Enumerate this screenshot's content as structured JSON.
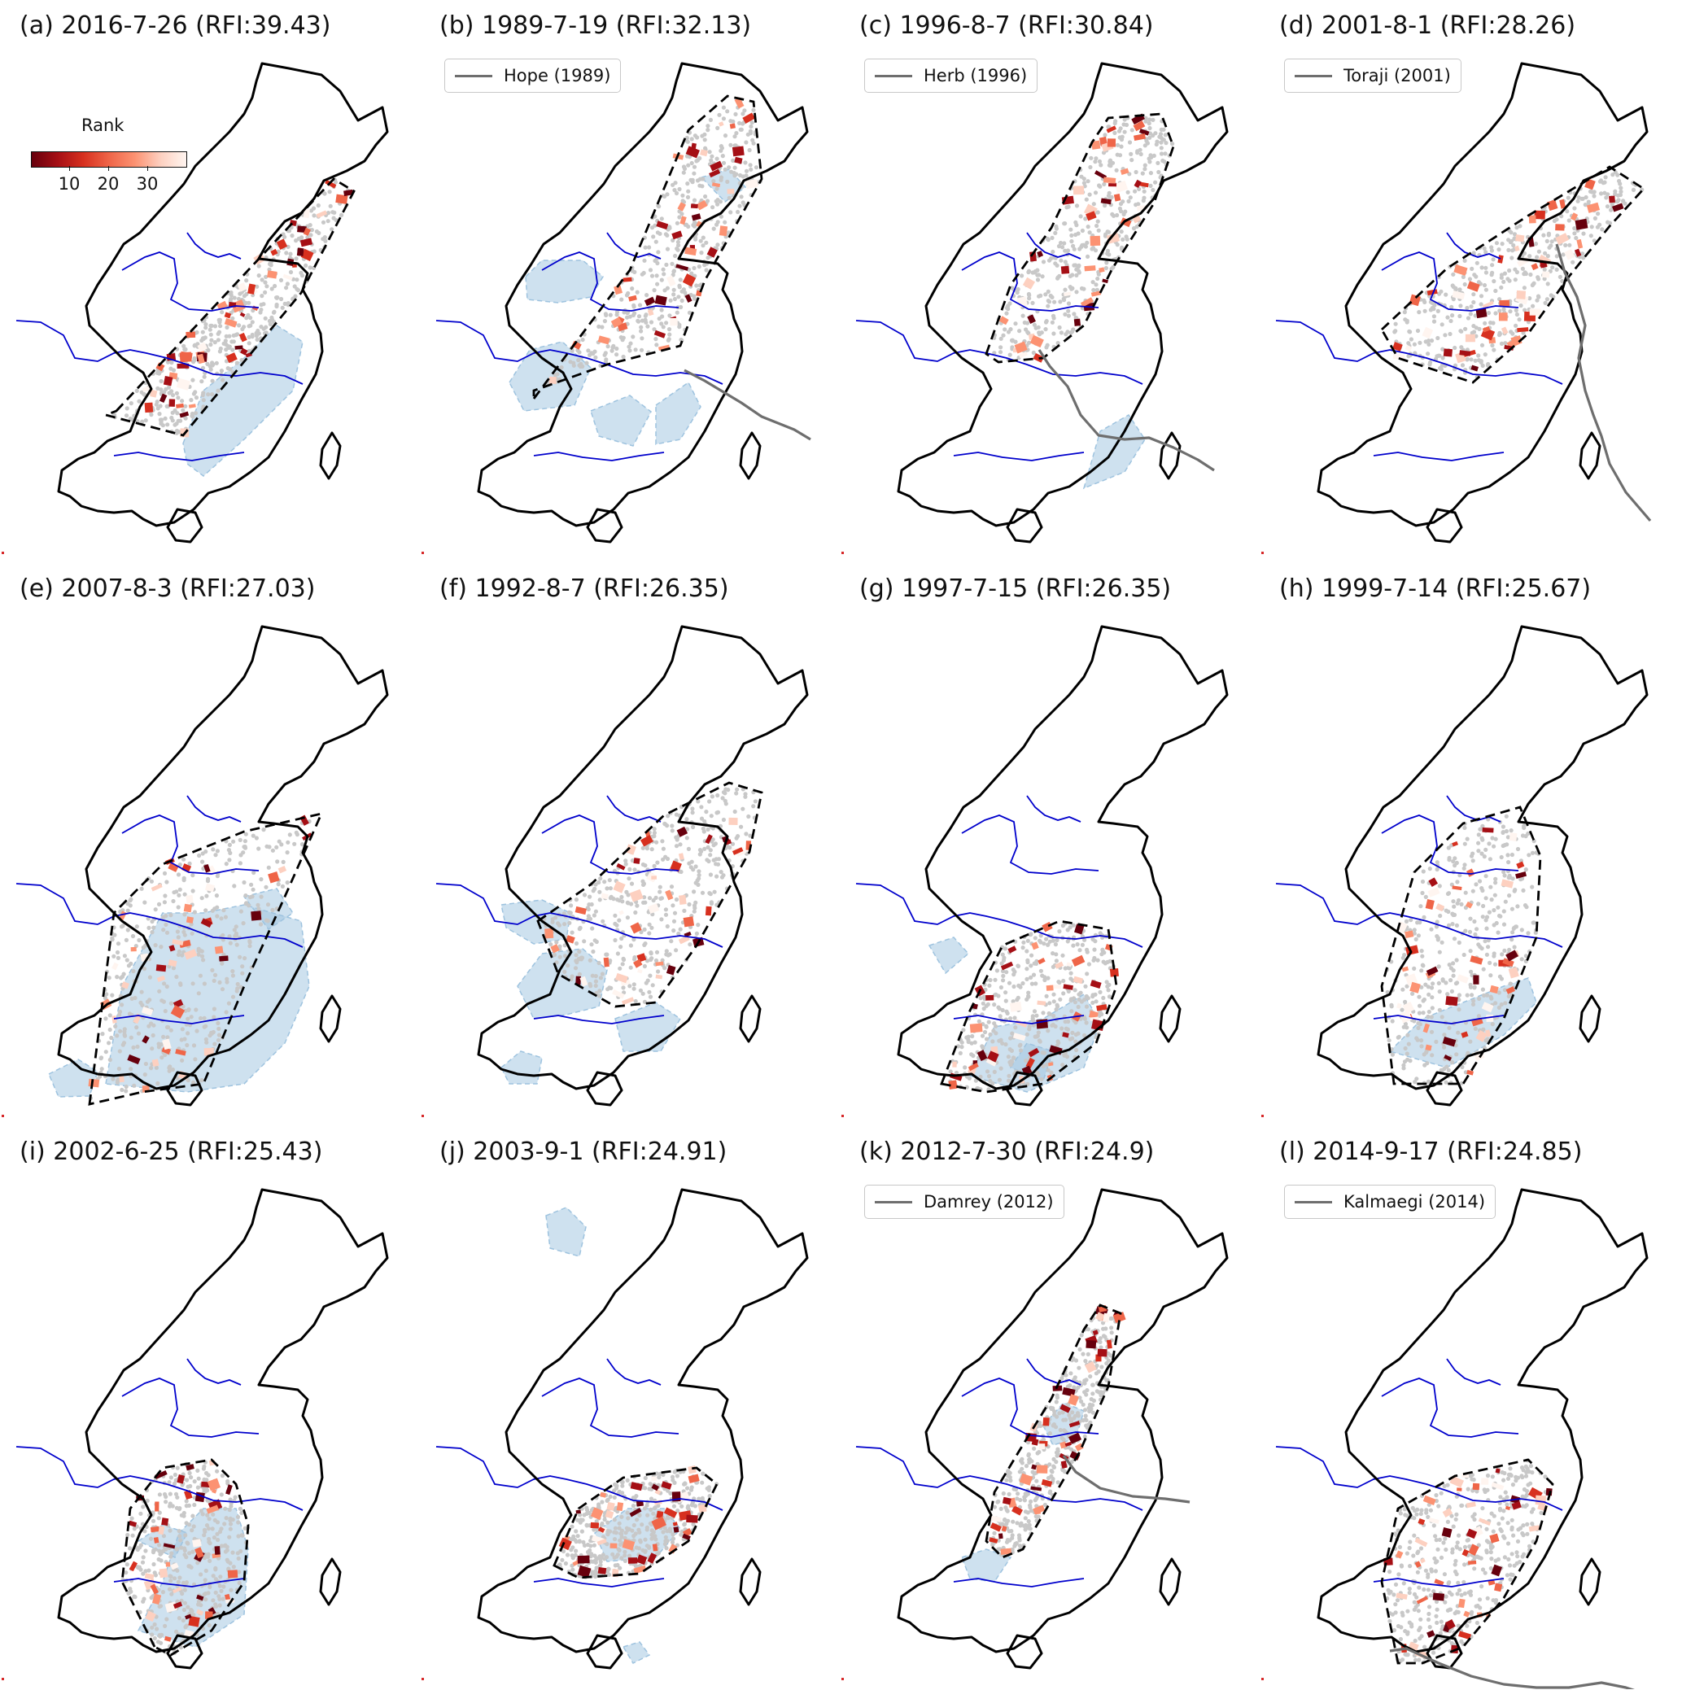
{
  "colorbar": {
    "title": "Rank",
    "ticks": [
      "10",
      "20",
      "30"
    ],
    "colors": [
      "#67000d",
      "#a50f15",
      "#d7301f",
      "#ef6548",
      "#fc9272",
      "#fdd0c0",
      "#fff5f0"
    ]
  },
  "style": {
    "coast_color": "#000000",
    "river_color": "#0000cc",
    "hull_color": "#000000",
    "shade_color": "#9ec3df",
    "station_color": "#c8c8c8",
    "track_color": "#6e6e6e"
  },
  "panels": [
    {
      "label": "(a) 2016-7-26 (RFI:39.43)",
      "typhoon": null
    },
    {
      "label": "(b) 1989-7-19 (RFI:32.13)",
      "typhoon": "Hope (1989)"
    },
    {
      "label": "(c) 1996-8-7 (RFI:30.84)",
      "typhoon": "Herb (1996)"
    },
    {
      "label": "(d) 2001-8-1 (RFI:28.26)",
      "typhoon": "Toraji (2001)"
    },
    {
      "label": "(e) 2007-8-3 (RFI:27.03)",
      "typhoon": null
    },
    {
      "label": "(f) 1992-8-7 (RFI:26.35)",
      "typhoon": null
    },
    {
      "label": "(g) 1997-7-15 (RFI:26.35)",
      "typhoon": null
    },
    {
      "label": "(h) 1999-7-14 (RFI:25.67)",
      "typhoon": null
    },
    {
      "label": "(i) 2002-6-25 (RFI:25.43)",
      "typhoon": null
    },
    {
      "label": "(j) 2003-9-1 (RFI:24.91)",
      "typhoon": null
    },
    {
      "label": "(k) 2012-7-30 (RFI:24.9)",
      "typhoon": "Damrey (2012)"
    },
    {
      "label": "(l) 2014-9-17 (RFI:24.85)",
      "typhoon": "Kalmaegi (2014)"
    }
  ]
}
